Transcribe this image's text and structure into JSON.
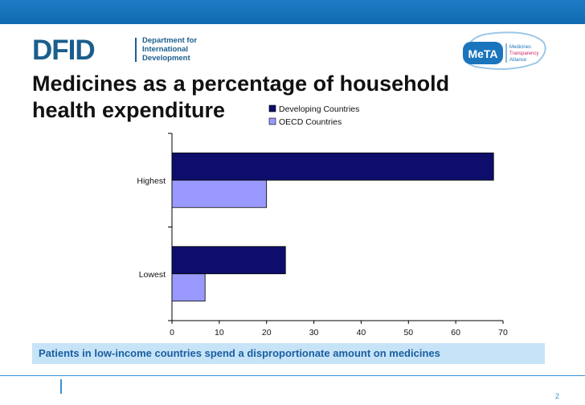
{
  "header": {
    "dfid_wordmark": "DFID",
    "dfid_department_line1": "Department for",
    "dfid_department_line2": "International",
    "dfid_department_line3": "Development",
    "meta_wordmark": "MeTA",
    "meta_line1": "Medicines",
    "meta_line2": "Transparency",
    "meta_line3": "Alliance",
    "brand_color": "#1b5e8c",
    "bar_color": "#1573bb"
  },
  "slide": {
    "title_line1": "Medicines as a percentage of household",
    "title_line2": "health expenditure",
    "caption": "Patients in low-income countries spend a disproportionate amount on medicines",
    "page_number": "2"
  },
  "chart_data": {
    "type": "bar",
    "orientation": "horizontal",
    "categories": [
      "Highest",
      "Lowest"
    ],
    "series": [
      {
        "name": "Developing Countries",
        "values": [
          68,
          24
        ],
        "color": "#0d0d6b"
      },
      {
        "name": "OECD Countries",
        "values": [
          20,
          7
        ],
        "color": "#9999ff"
      }
    ],
    "xlim": [
      0,
      70
    ],
    "xticks": [
      0,
      10,
      20,
      30,
      40,
      50,
      60,
      70
    ],
    "xlabel": "",
    "ylabel": "",
    "title": "",
    "grid": false,
    "legend": "top-center"
  }
}
